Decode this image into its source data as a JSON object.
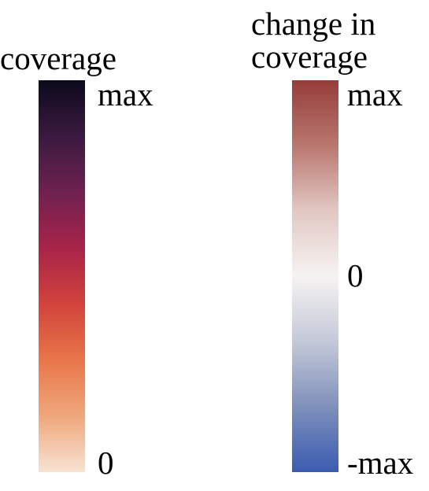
{
  "coverage_colorbar": {
    "title": "coverage",
    "label_top": "max",
    "label_bottom": "0",
    "gradient_colors": [
      "#0c0a1c",
      "#3a1a3f",
      "#6f2150",
      "#a82449",
      "#d1433b",
      "#e8764a",
      "#efa77c",
      "#f7e3d2"
    ]
  },
  "change_colorbar": {
    "title_line1": "change in",
    "title_line2": "coverage",
    "label_top": "max",
    "label_mid": "0",
    "label_bottom": "-max",
    "gradient_colors": [
      "#963c39",
      "#b9776f",
      "#e2c8c3",
      "#f6f3f2",
      "#c4c9d8",
      "#7f90bb",
      "#3a5bb0"
    ]
  }
}
